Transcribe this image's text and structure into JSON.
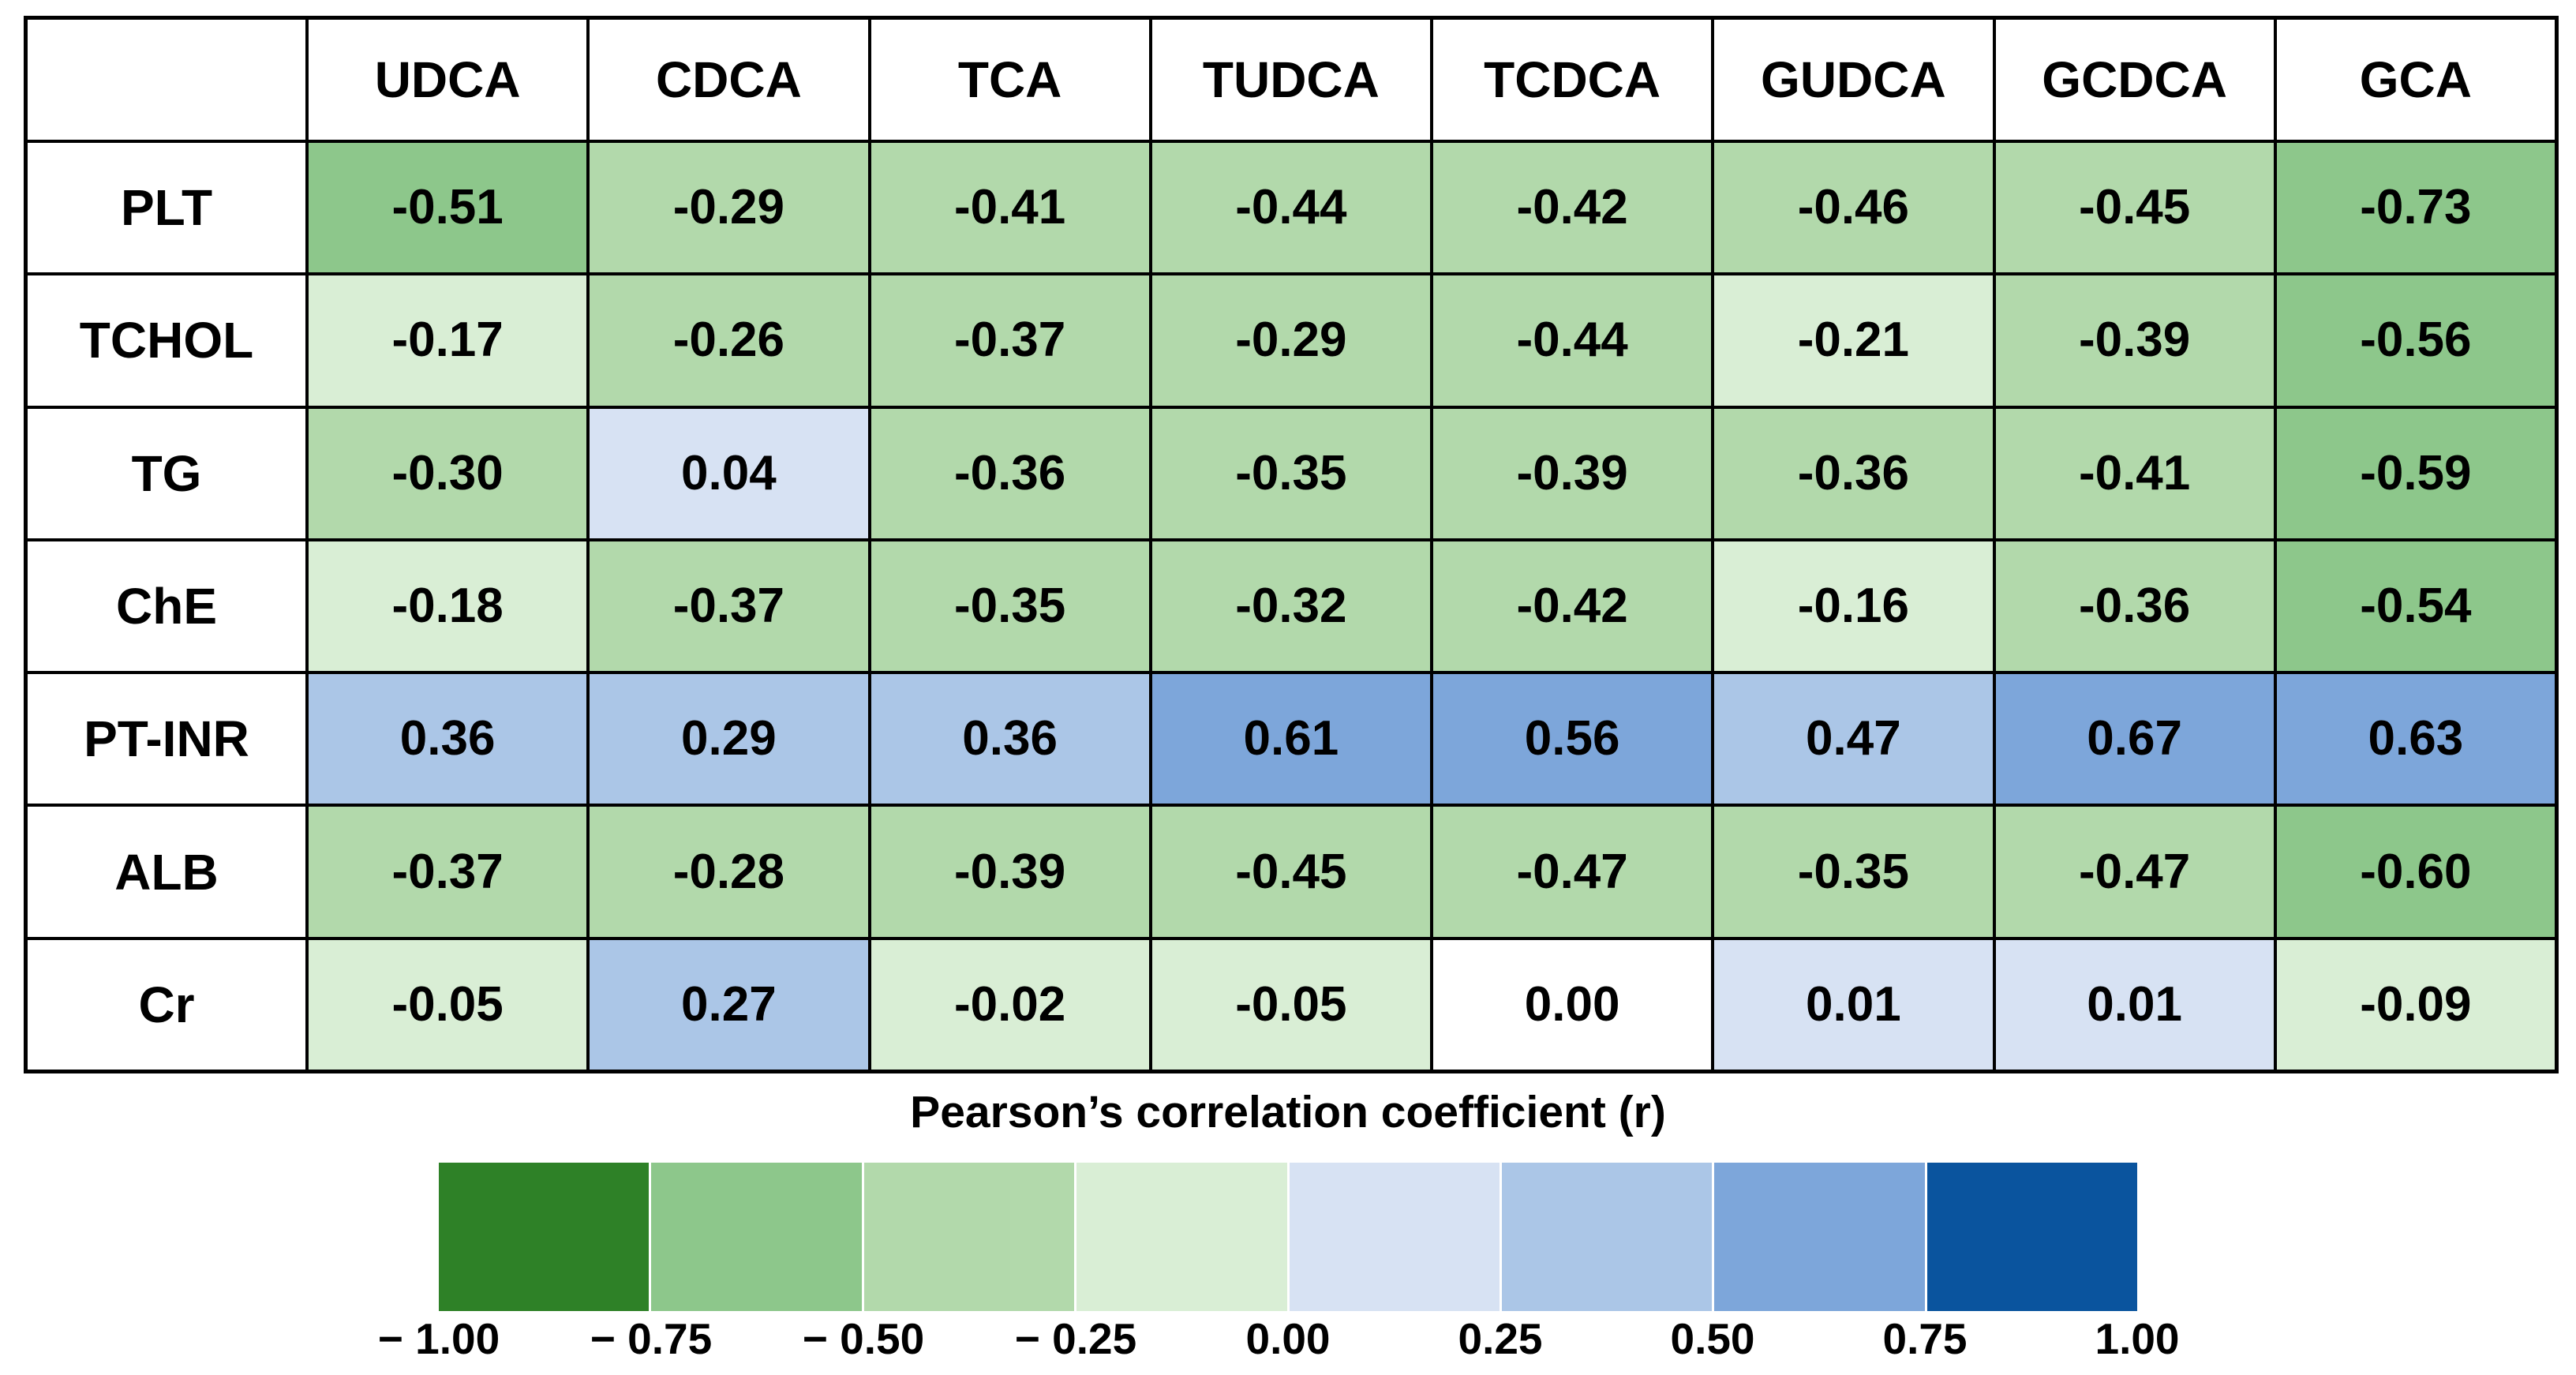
{
  "chart_data": {
    "type": "heatmap",
    "title": "Pearson’s correlation coefficient (r)",
    "columns": [
      "UDCA",
      "CDCA",
      "TCA",
      "TUDCA",
      "TCDCA",
      "GUDCA",
      "GCDCA",
      "GCA"
    ],
    "rows": [
      "PLT",
      "TCHOL",
      "TG",
      "ChE",
      "PT-INR",
      "ALB",
      "Cr"
    ],
    "values": [
      [
        -0.51,
        -0.29,
        -0.41,
        -0.44,
        -0.42,
        -0.46,
        -0.45,
        -0.73
      ],
      [
        -0.17,
        -0.26,
        -0.37,
        -0.29,
        -0.44,
        -0.21,
        -0.39,
        -0.56
      ],
      [
        -0.3,
        0.04,
        -0.36,
        -0.35,
        -0.39,
        -0.36,
        -0.41,
        -0.59
      ],
      [
        -0.18,
        -0.37,
        -0.35,
        -0.32,
        -0.42,
        -0.16,
        -0.36,
        -0.54
      ],
      [
        0.36,
        0.29,
        0.36,
        0.61,
        0.56,
        0.47,
        0.67,
        0.63
      ],
      [
        -0.37,
        -0.28,
        -0.39,
        -0.45,
        -0.47,
        -0.35,
        -0.47,
        -0.6
      ],
      [
        -0.05,
        0.27,
        -0.02,
        -0.05,
        0.0,
        0.01,
        0.01,
        -0.09
      ]
    ],
    "value_range": [
      -1,
      1
    ],
    "bin_edges": [
      -1.0,
      -0.75,
      -0.5,
      -0.25,
      0.0,
      0.25,
      0.5,
      0.75,
      1.0
    ],
    "legend_title": "Pearson’s correlation coefficient (r)",
    "legend_ticks": [
      "− 1.00",
      "− 0.75",
      "− 0.50",
      "− 0.25",
      "0.00",
      "0.25",
      "0.50",
      "0.75",
      "1.00"
    ],
    "legend_position": "bottom",
    "palette": {
      "bins": [
        "#2e8127",
        "#8dc78b",
        "#b2d9ab",
        "#d9eed5",
        "#d7e2f3",
        "#abc6e7",
        "#7da6da",
        "#0a549e"
      ],
      "zero": "#ffffff",
      "border": "#000000",
      "text": "#000000"
    }
  }
}
